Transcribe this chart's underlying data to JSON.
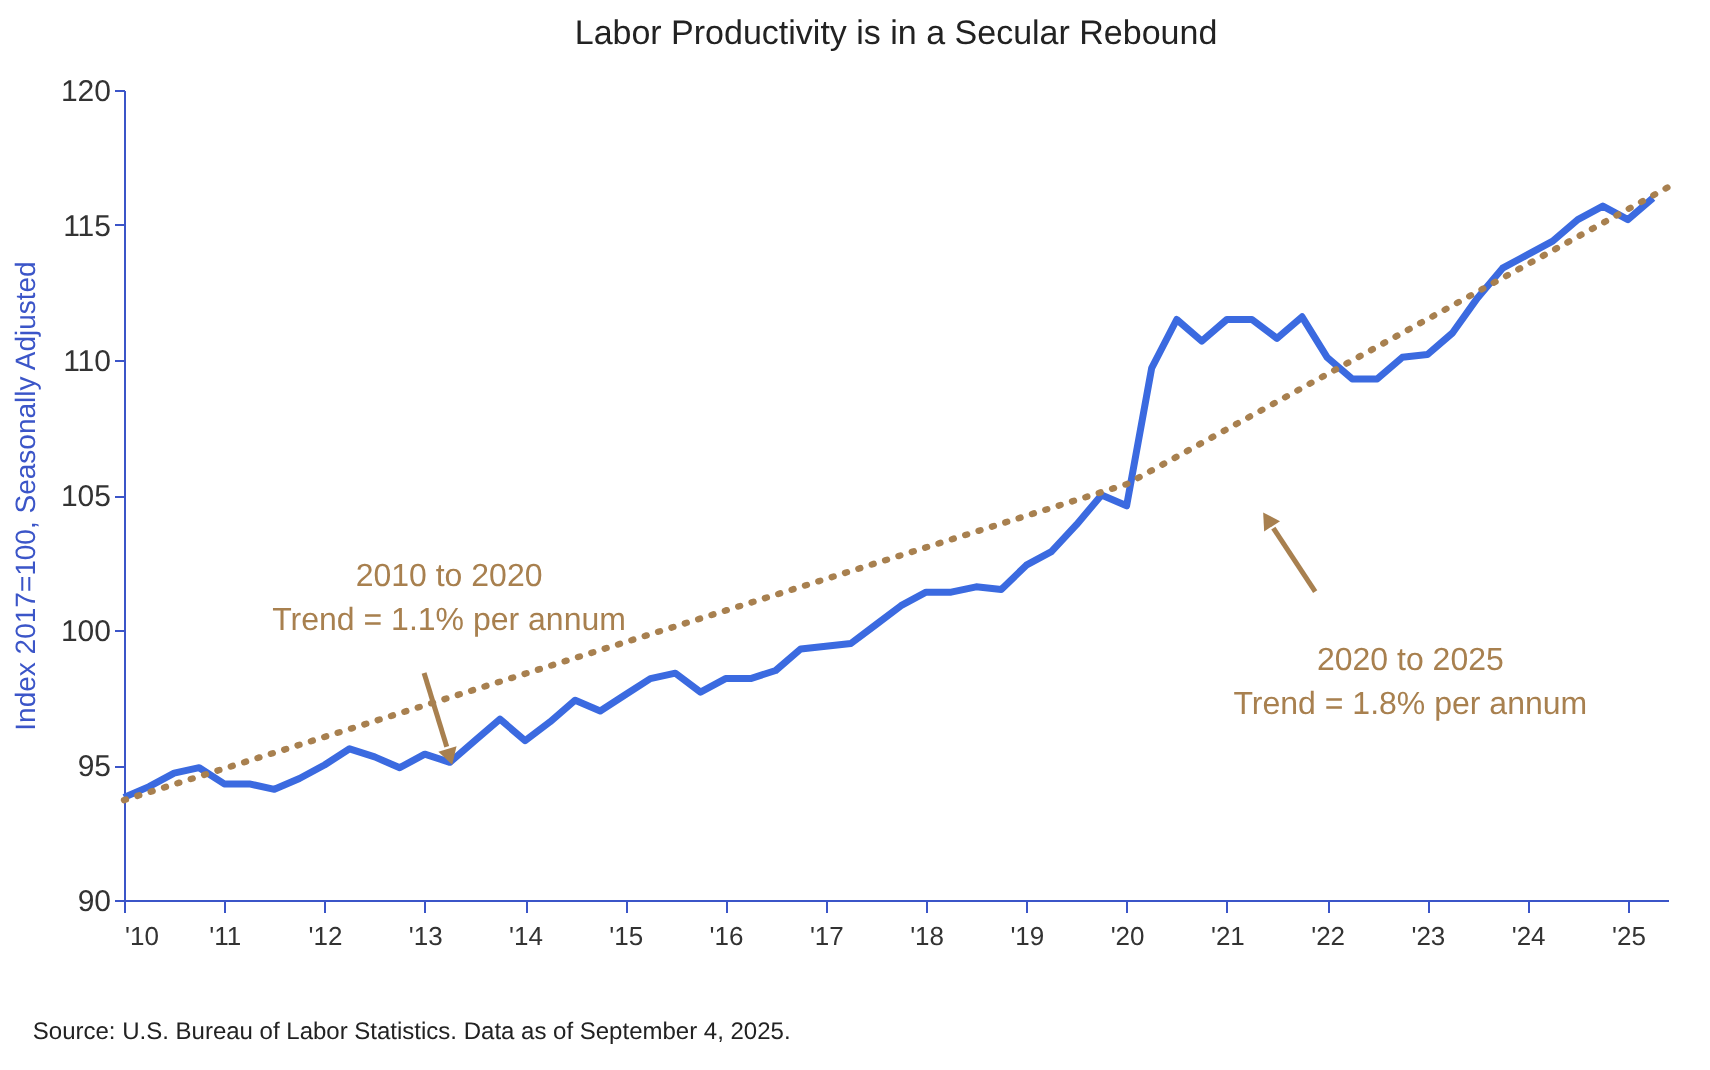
{
  "chart_data": {
    "type": "line",
    "title": "Labor Productivity is in a Secular Rebound",
    "ylabel": "Index 2017=100, Seasonally Adjusted",
    "x": [
      2010.0,
      2010.25,
      2010.5,
      2010.75,
      2011.0,
      2011.25,
      2011.5,
      2011.75,
      2012.0,
      2012.25,
      2012.5,
      2012.75,
      2013.0,
      2013.25,
      2013.5,
      2013.75,
      2014.0,
      2014.25,
      2014.5,
      2014.75,
      2015.0,
      2015.25,
      2015.5,
      2015.75,
      2016.0,
      2016.25,
      2016.5,
      2016.75,
      2017.0,
      2017.25,
      2017.5,
      2017.75,
      2018.0,
      2018.25,
      2018.5,
      2018.75,
      2019.0,
      2019.25,
      2019.5,
      2019.75,
      2020.0,
      2020.25,
      2020.5,
      2020.75,
      2021.0,
      2021.25,
      2021.5,
      2021.75,
      2022.0,
      2022.25,
      2022.5,
      2022.75,
      2023.0,
      2023.25,
      2023.5,
      2023.75,
      2024.0,
      2024.25,
      2024.5,
      2024.75,
      2025.0,
      2025.25
    ],
    "series": [
      {
        "color": "#3b6ae0",
        "line_style": "solid",
        "values": [
          93.8,
          94.2,
          94.7,
          94.9,
          94.3,
          94.3,
          94.1,
          94.5,
          95.0,
          95.6,
          95.3,
          94.9,
          95.4,
          95.1,
          95.9,
          96.7,
          95.9,
          96.6,
          97.4,
          97.0,
          97.6,
          98.2,
          98.4,
          97.7,
          98.2,
          98.2,
          98.5,
          99.3,
          99.4,
          99.5,
          100.2,
          100.9,
          101.4,
          101.4,
          101.6,
          101.5,
          102.4,
          102.9,
          103.9,
          105.0,
          104.6,
          109.7,
          111.5,
          110.7,
          111.5,
          111.5,
          110.8,
          111.6,
          110.1,
          109.3,
          109.3,
          110.1,
          110.2,
          111.0,
          112.3,
          113.4,
          113.9,
          114.4,
          115.2,
          115.7,
          115.2,
          116.0
        ]
      },
      {
        "type": "line",
        "color": "#a8804f",
        "line_style": "dotted",
        "x": [
          2010.0,
          2020.0,
          2025.4
        ],
        "values": [
          93.7,
          105.4,
          116.4
        ]
      }
    ],
    "annotations": [
      {
        "text": "2010 to 2020\nTrend =  1.1% per annum",
        "x": 2013.25,
        "y": 95.3
      },
      "2020 to 2025\nTrend =  1.8% per annum",
      "Source: U.S. Bureau of Labor Statistics. Data as of September 4, 2025."
    ],
    "xlim": [
      2010,
      2025.4
    ],
    "ylim": [
      90,
      120
    ],
    "xticks": [
      {
        "value": 2010,
        "label": "'10"
      },
      {
        "value": 2011,
        "label": "'11"
      },
      {
        "value": 2012,
        "label": "'12"
      },
      {
        "value": 2013,
        "label": "'13"
      },
      {
        "value": 2014,
        "label": "'14"
      },
      {
        "value": 2015,
        "label": "'15"
      },
      {
        "value": 2016,
        "label": "'16"
      },
      {
        "value": 2017,
        "label": "'17"
      },
      {
        "value": 2018,
        "label": "'18"
      },
      {
        "value": 2019,
        "label": "'19"
      },
      {
        "value": 2020,
        "label": "'20"
      },
      {
        "value": 2021,
        "label": "'21"
      },
      {
        "value": 2022,
        "label": "'22"
      },
      {
        "value": 2023,
        "label": "'23"
      },
      {
        "value": 2024,
        "label": "'24"
      },
      {
        "value": 2025,
        "label": "'25"
      }
    ],
    "yticks": [
      90,
      95,
      100,
      105,
      110,
      115,
      120
    ],
    "grid": false
  }
}
